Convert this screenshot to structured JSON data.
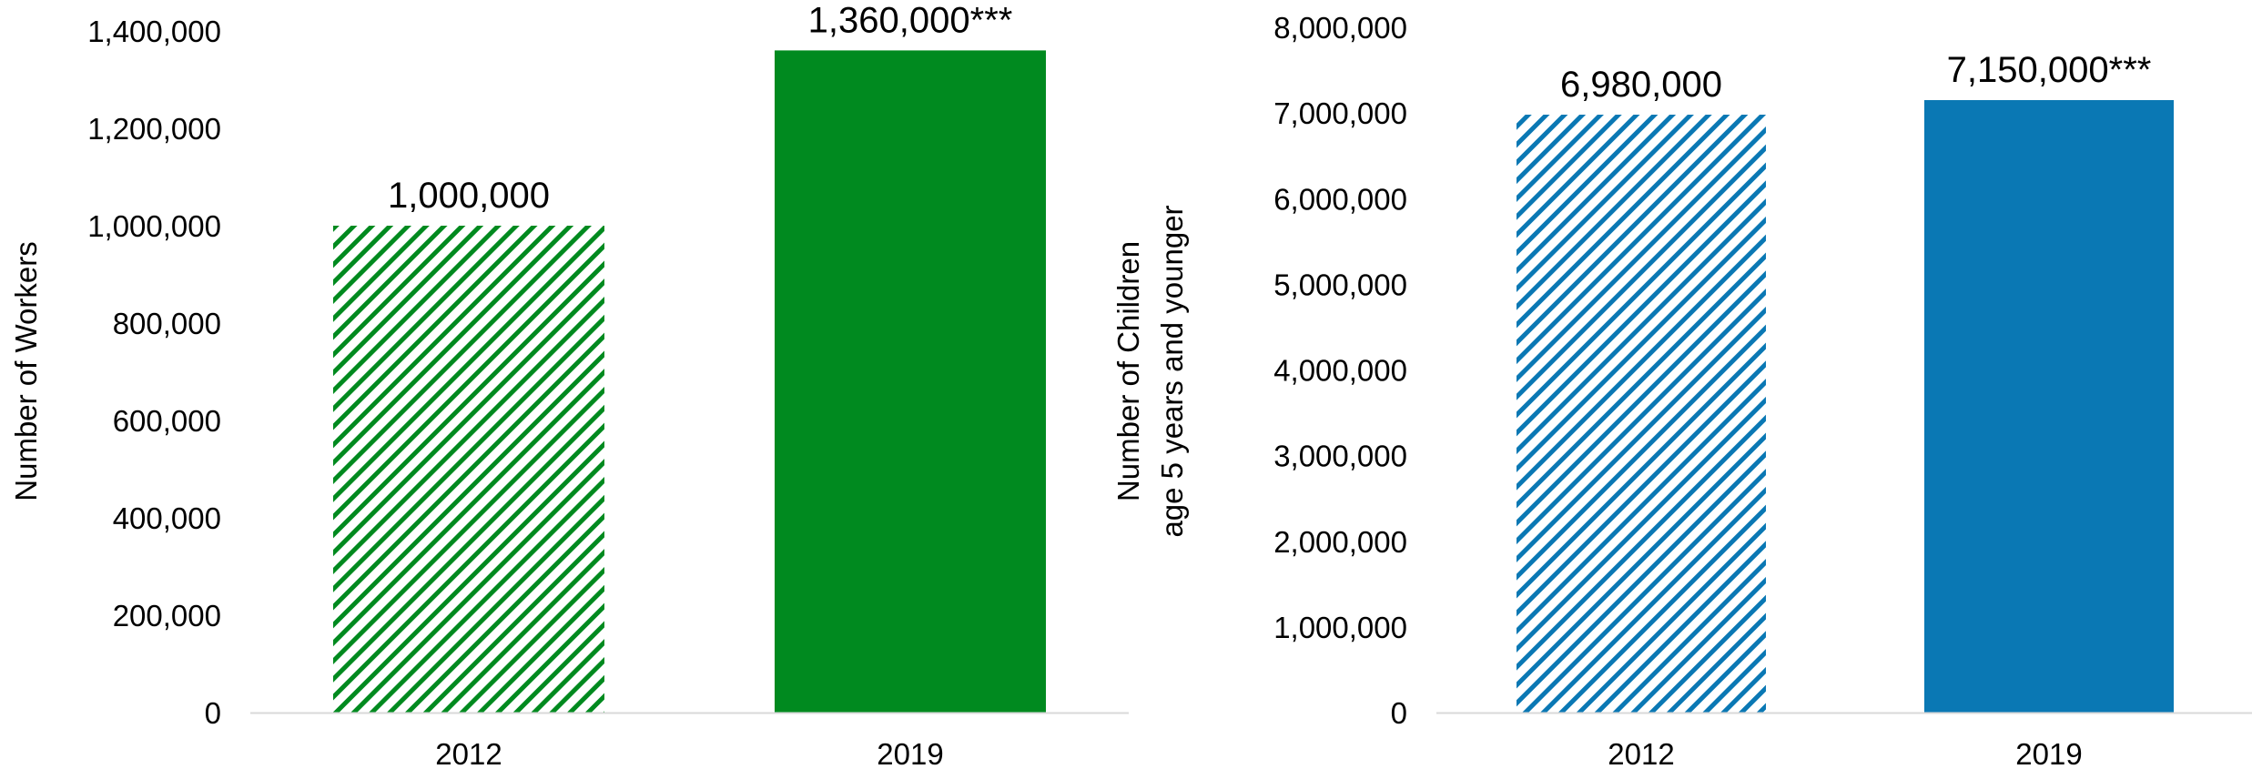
{
  "chart_data": [
    {
      "type": "bar",
      "categories": [
        "2012",
        "2019"
      ],
      "values": [
        1000000,
        1360000
      ],
      "value_labels": [
        "1,000,000",
        "1,360,000***"
      ],
      "ylabel": "Number of Workers",
      "ylim": [
        0,
        1400000
      ],
      "yticks": [
        0,
        200000,
        400000,
        600000,
        800000,
        1000000,
        1200000,
        1400000
      ],
      "ytick_labels": [
        "0",
        "200,000",
        "400,000",
        "600,000",
        "800,000",
        "1,000,000",
        "1,200,000",
        "1,400,000"
      ],
      "colors": [
        "#008a1f",
        "#008a1f"
      ],
      "fill_styles": [
        "hatched",
        "solid"
      ],
      "grid": false,
      "legend": "none"
    },
    {
      "type": "bar",
      "categories": [
        "2012",
        "2019"
      ],
      "values": [
        6980000,
        7150000
      ],
      "value_labels": [
        "6,980,000",
        "7,150,000***"
      ],
      "ylabel": [
        "Number of Children",
        "age 5 years and younger"
      ],
      "ylim": [
        0,
        8000000
      ],
      "yticks": [
        0,
        1000000,
        2000000,
        3000000,
        4000000,
        5000000,
        6000000,
        7000000,
        8000000
      ],
      "ytick_labels": [
        "0",
        "1,000,000",
        "2,000,000",
        "3,000,000",
        "4,000,000",
        "5,000,000",
        "6,000,000",
        "7,000,000",
        "8,000,000"
      ],
      "colors": [
        "#0a78b4",
        "#0a78b4"
      ],
      "fill_styles": [
        "hatched",
        "solid"
      ],
      "grid": false,
      "legend": "none"
    }
  ]
}
